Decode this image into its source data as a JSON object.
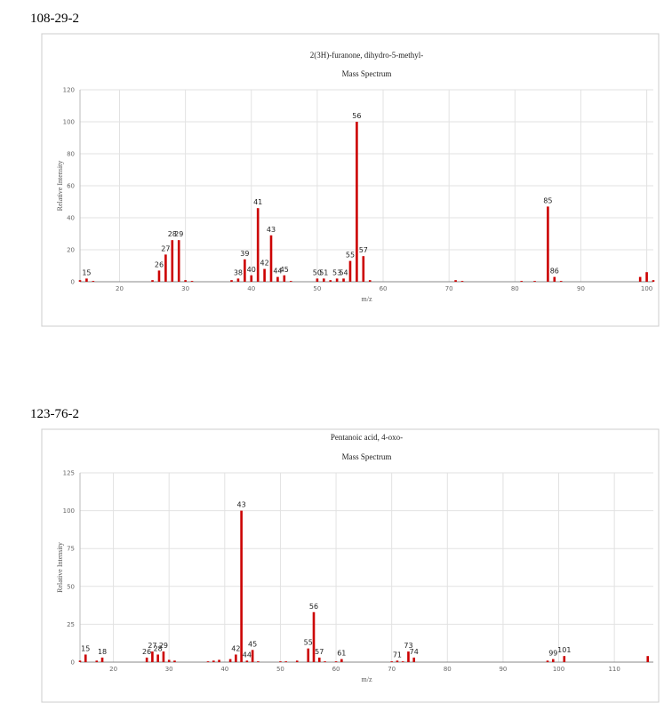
{
  "chart_data": [
    {
      "type": "bar",
      "heading": "108-29-2",
      "title": "2(3H)-furanone, dihydro-5-methyl-",
      "subtitle": "Mass Spectrum",
      "x_label": "m/z",
      "y_label": "Relative Intensity",
      "xlim": [
        14,
        101
      ],
      "ylim": [
        0,
        120
      ],
      "xticks": [
        20,
        30,
        40,
        50,
        60,
        70,
        80,
        90,
        100
      ],
      "yticks": [
        0,
        20,
        40,
        60,
        80,
        100,
        120
      ],
      "grid": true,
      "series": [
        {
          "color": "#cc0000",
          "labeled": true,
          "x": [
            15,
            26,
            27,
            28,
            29,
            38,
            39,
            40,
            41,
            42,
            43,
            44,
            45,
            50,
            51,
            53,
            54,
            55,
            56,
            57,
            85,
            86
          ],
          "values": [
            2,
            7,
            17,
            26,
            26,
            2,
            14,
            4,
            46,
            8,
            29,
            3,
            4,
            2,
            2,
            2,
            2,
            13,
            100,
            16,
            47,
            3
          ]
        },
        {
          "color": "#cc0000",
          "x": [
            14,
            16,
            25,
            30,
            31,
            37,
            46,
            52,
            58,
            71,
            72,
            81,
            83,
            87,
            99,
            100,
            101
          ],
          "values": [
            1,
            0.5,
            1,
            1,
            0.5,
            1,
            0.5,
            1,
            1,
            1,
            0.5,
            0.5,
            0.5,
            0.5,
            3,
            6,
            1
          ]
        }
      ]
    },
    {
      "type": "bar",
      "heading": "123-76-2",
      "title": "Pentanoic acid, 4-oxo-",
      "subtitle": "Mass Spectrum",
      "x_label": "m/z",
      "y_label": "Relative Intensity",
      "xlim": [
        14,
        117
      ],
      "ylim": [
        0,
        125
      ],
      "xticks": [
        20,
        30,
        40,
        50,
        60,
        70,
        80,
        90,
        100,
        110
      ],
      "yticks": [
        0,
        25,
        50,
        75,
        100,
        125
      ],
      "grid": true,
      "series": [
        {
          "color": "#cc0000",
          "labeled": true,
          "x": [
            15,
            18,
            26,
            27,
            28,
            29,
            42,
            43,
            44,
            45,
            55,
            56,
            57,
            61,
            71,
            73,
            74,
            99,
            101
          ],
          "values": [
            5,
            3,
            3,
            7,
            5,
            7,
            5,
            100,
            1,
            8,
            9,
            33,
            3,
            2,
            1,
            7,
            3,
            2,
            4
          ]
        },
        {
          "color": "#cc0000",
          "x": [
            14,
            17,
            30,
            31,
            37,
            38,
            39,
            41,
            46,
            50,
            51,
            53,
            58,
            60,
            70,
            72,
            98,
            116
          ],
          "values": [
            1,
            1,
            1.5,
            1,
            0.5,
            1,
            1.5,
            2,
            0.5,
            0.5,
            0.5,
            1,
            0.5,
            0.5,
            0.5,
            0.5,
            1,
            4
          ]
        }
      ]
    }
  ]
}
